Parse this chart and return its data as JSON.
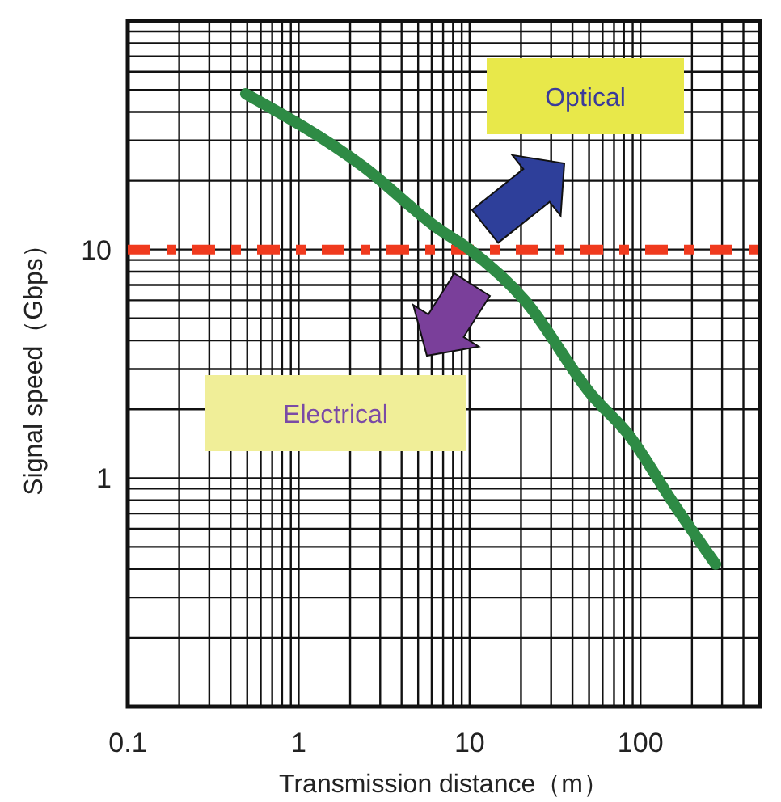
{
  "chart_data": {
    "type": "line",
    "xlabel": "Transmission distance（m）",
    "ylabel": "Signal speed（Gbps）",
    "log": "xy",
    "xlim": [
      0.1,
      500
    ],
    "ylim": [
      0.1,
      100
    ],
    "xticks": [
      0.1,
      1,
      10,
      100
    ],
    "yticks": [
      1,
      10
    ],
    "grid": true,
    "x": [
      0.49,
      2.4,
      6.5,
      10,
      21,
      52,
      85,
      155,
      275
    ],
    "series": [
      {
        "color": "#2e8b45",
        "values": [
          48,
          23,
          12.4,
          10,
          6.0,
          2.3,
          1.55,
          0.78,
          0.42
        ]
      }
    ],
    "ref_lines": [
      {
        "axis": "y",
        "value": 10,
        "color": "#f03a1e",
        "line_style": "dashdot"
      }
    ],
    "annotations": [
      "Optical",
      "Electrical"
    ]
  }
}
